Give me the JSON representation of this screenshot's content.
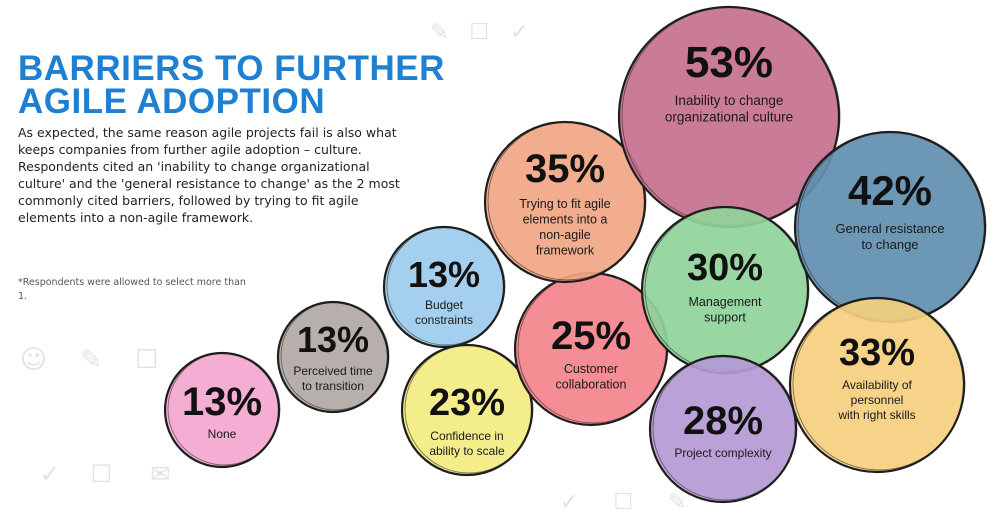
{
  "title_line1": "BARRIERS TO FURTHER",
  "title_line2": "AGILE ADOPTION",
  "intro": "As expected, the same reason agile projects fail is also what keeps companies from further agile adoption – culture. Respondents cited an 'inability to change organizational culture' and the 'general resistance to change' as the 2 most commonly cited barriers, followed by trying to fit agile elements into a non-agile framework.",
  "footnote": "*Respondents were allowed to select more than 1.",
  "chart_data": {
    "type": "bubble",
    "title": "BARRIERS TO FURTHER AGILE ADOPTION",
    "unit": "%",
    "items": [
      {
        "label": "None",
        "label_lines": [
          "None"
        ],
        "value": 13,
        "value_label": "13%",
        "color": "#f3a6cf"
      },
      {
        "label": "Perceived time to transition",
        "label_lines": [
          "Perceived time",
          "to transition"
        ],
        "value": 13,
        "value_label": "13%",
        "color": "#b1a8a4"
      },
      {
        "label": "Budget constraints",
        "label_lines": [
          "Budget",
          "constraints"
        ],
        "value": 13,
        "value_label": "13%",
        "color": "#9ccbed"
      },
      {
        "label": "Confidence in ability to scale",
        "label_lines": [
          "Confidence in",
          "ability to scale"
        ],
        "value": 23,
        "value_label": "23%",
        "color": "#f2eb82"
      },
      {
        "label": "Customer collaboration",
        "label_lines": [
          "Customer",
          "collaboration"
        ],
        "value": 25,
        "value_label": "25%",
        "color": "#f3838b"
      },
      {
        "label": "Trying to fit agile elements into a non-agile framework",
        "label_lines": [
          "Trying to fit agile",
          "elements into a",
          "non-agile",
          "framework"
        ],
        "value": 35,
        "value_label": "35%",
        "color": "#f0a683"
      },
      {
        "label": "Inability to change organizational culture",
        "label_lines": [
          "Inability to change",
          "organizational culture"
        ],
        "value": 53,
        "value_label": "53%",
        "color": "#c6708f"
      },
      {
        "label": "Management support",
        "label_lines": [
          "Management",
          "support"
        ],
        "value": 30,
        "value_label": "30%",
        "color": "#8fd39a"
      },
      {
        "label": "General resistance to change",
        "label_lines": [
          "General resistance",
          "to change"
        ],
        "value": 42,
        "value_label": "42%",
        "color": "#5f8fb0"
      },
      {
        "label": "Project complexity",
        "label_lines": [
          "Project complexity"
        ],
        "value": 28,
        "value_label": "28%",
        "color": "#b49ad6"
      },
      {
        "label": "Availability of personnel with right skills",
        "label_lines": [
          "Availability of",
          "personnel",
          "with right skills"
        ],
        "value": 33,
        "value_label": "33%",
        "color": "#f5cf7e"
      }
    ]
  }
}
